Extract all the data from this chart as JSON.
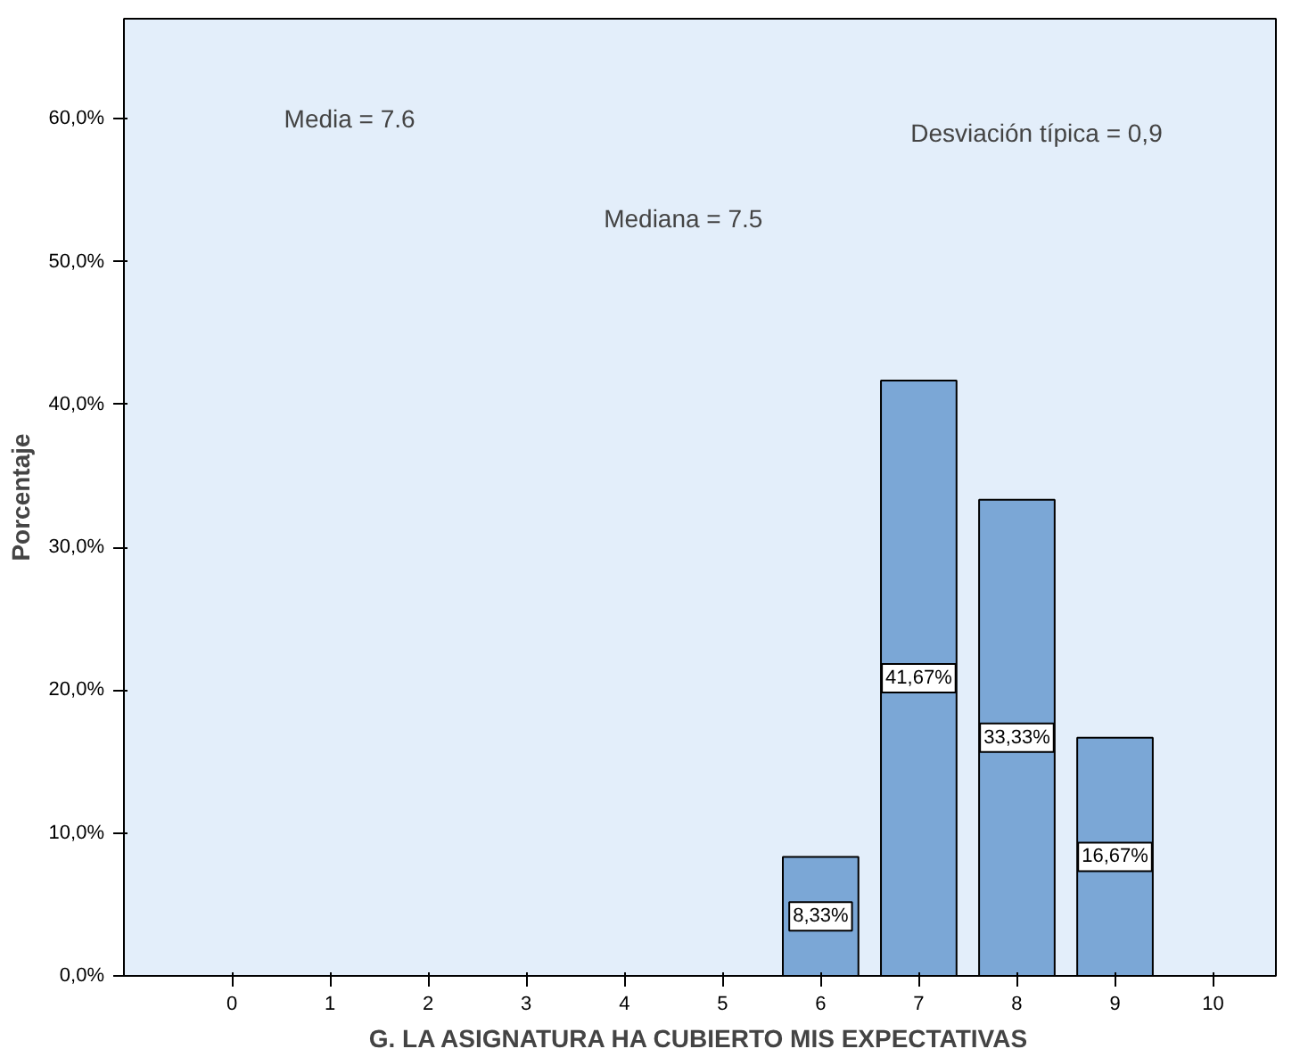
{
  "chart_data": {
    "type": "bar",
    "xlabel": "G. LA ASIGNATURA HA CUBIERTO MIS EXPECTATIVAS",
    "ylabel": "Porcentaje",
    "categories": [
      "0",
      "1",
      "2",
      "3",
      "4",
      "5",
      "6",
      "7",
      "8",
      "9",
      "10"
    ],
    "values": [
      null,
      null,
      null,
      null,
      null,
      null,
      8.33,
      41.67,
      33.33,
      16.67,
      null
    ],
    "value_labels": [
      null,
      null,
      null,
      null,
      null,
      null,
      "8,33%",
      "41,67%",
      "33,33%",
      "16,67%",
      null
    ],
    "color": "#7ba7d6",
    "ylim": [
      0,
      67
    ],
    "yticks": [
      {
        "value": 0,
        "label": "0,0%"
      },
      {
        "value": 10,
        "label": "10,0%"
      },
      {
        "value": 20,
        "label": "20,0%"
      },
      {
        "value": 30,
        "label": "30,0%"
      },
      {
        "value": 40,
        "label": "40,0%"
      },
      {
        "value": 50,
        "label": "50,0%"
      },
      {
        "value": 60,
        "label": "60,0%"
      }
    ],
    "annotations": [
      "Media = 7.6",
      "Mediana = 7.5",
      "Desviación típica = 0,9"
    ],
    "grid": false
  }
}
